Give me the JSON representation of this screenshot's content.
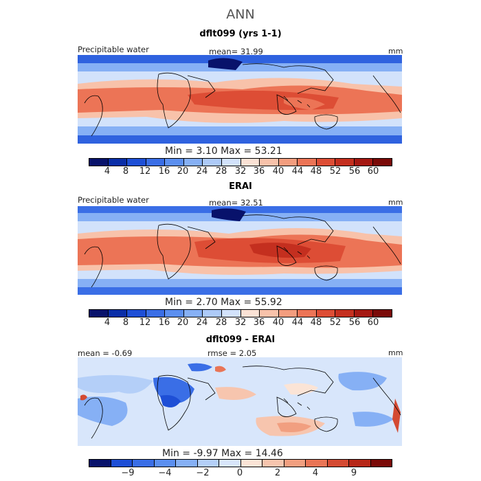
{
  "title": "ANN",
  "panels": [
    {
      "title": "dflt099 (yrs 1-1)",
      "left_label": "Precipitable water",
      "center_label": "mean=  31.99",
      "units": "mm",
      "min_max": "Min =    3.10  Max =   53.21"
    },
    {
      "title": "ERAI",
      "left_label": "Precipitable water",
      "center_label": "mean=  32.51",
      "units": "mm",
      "min_max": "Min =    2.70  Max =   55.92"
    },
    {
      "title": "dflt099 - ERAI",
      "left_label": "mean =   -0.69",
      "center_label": "rmse =    2.05",
      "units": "mm",
      "min_max": "Min =   -9.97  Max =   14.46"
    }
  ],
  "colorbar_full": {
    "labels": [
      "4",
      "8",
      "12",
      "16",
      "20",
      "24",
      "28",
      "32",
      "36",
      "40",
      "44",
      "48",
      "52",
      "56",
      "60"
    ],
    "colors": [
      "#08126b",
      "#0a2ea8",
      "#1e4fd6",
      "#3a6ee6",
      "#5b8ff0",
      "#86b0f5",
      "#adcaf8",
      "#d2e2fb",
      "#fbe2d5",
      "#f8c2aa",
      "#f39d7e",
      "#ec7456",
      "#dd4d35",
      "#c42f1f",
      "#a51812",
      "#7a0a08"
    ]
  },
  "colorbar_diff": {
    "labels": [
      "-9",
      "-4",
      "-2",
      "0",
      "2",
      "4",
      "9"
    ],
    "colors": [
      "#08126b",
      "#1e4fd6",
      "#3a6ee6",
      "#5b8ff0",
      "#86b0f5",
      "#b4cff8",
      "#d8e6fb",
      "#fbe4d6",
      "#f7c5ae",
      "#f19f80",
      "#e97556",
      "#d44a32",
      "#b72718",
      "#7a0a08"
    ]
  }
}
